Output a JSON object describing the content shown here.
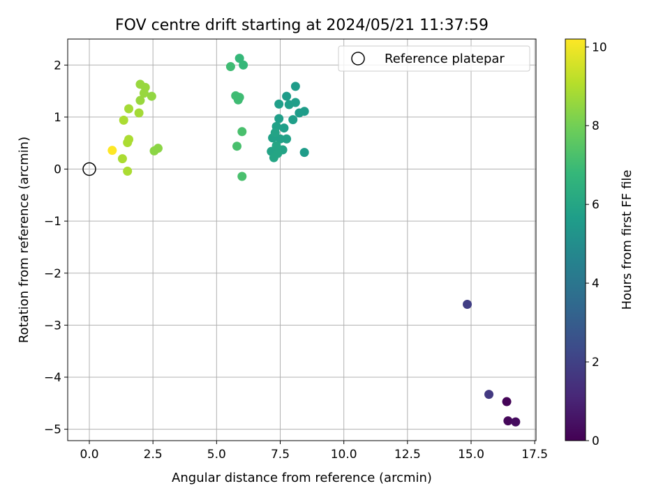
{
  "chart_data": {
    "type": "scatter",
    "title": "FOV centre drift starting at 2024/05/21 11:37:59",
    "xlabel": "Angular distance from reference (arcmin)",
    "ylabel": "Rotation from reference (arcmin)",
    "xlim": [
      -0.85,
      17.55
    ],
    "ylim": [
      -5.22,
      2.5
    ],
    "xticks": [
      0.0,
      2.5,
      5.0,
      7.5,
      10.0,
      12.5,
      15.0,
      17.5
    ],
    "xtick_labels": [
      "0.0",
      "2.5",
      "5.0",
      "7.5",
      "10.0",
      "12.5",
      "15.0",
      "17.5"
    ],
    "yticks": [
      2,
      1,
      0,
      -1,
      -2,
      -3,
      -4,
      -5
    ],
    "ytick_labels": [
      "2",
      "1",
      "0",
      "−1",
      "−2",
      "−3",
      "−4",
      "−5"
    ],
    "grid": true,
    "legend": {
      "placement": "top-right",
      "entries": [
        "Reference platepar"
      ]
    },
    "reference_point": {
      "x": 0.0,
      "y": 0.0,
      "label": "Reference platepar",
      "marker": "open-circle"
    },
    "colorbar": {
      "label": "Hours from first FF file",
      "colormap": "viridis",
      "range": [
        0,
        10.2
      ],
      "ticks": [
        0,
        2,
        4,
        6,
        8,
        10
      ],
      "tick_labels": [
        "0",
        "2",
        "4",
        "6",
        "8",
        "10"
      ],
      "stops": [
        "#440154",
        "#482878",
        "#3e4989",
        "#31688e",
        "#26828e",
        "#1f9e89",
        "#35b779",
        "#6ece58",
        "#b5de2b",
        "#fde725"
      ]
    },
    "points": [
      {
        "x": 16.4,
        "y": -4.47,
        "c": 0.1
      },
      {
        "x": 16.45,
        "y": -4.84,
        "c": 0.2
      },
      {
        "x": 16.75,
        "y": -4.86,
        "c": 0.3
      },
      {
        "x": 15.7,
        "y": -4.33,
        "c": 1.7
      },
      {
        "x": 14.85,
        "y": -2.6,
        "c": 1.9
      },
      {
        "x": 8.1,
        "y": 1.59,
        "c": 5.6
      },
      {
        "x": 7.75,
        "y": 1.4,
        "c": 5.6
      },
      {
        "x": 8.45,
        "y": 1.11,
        "c": 5.6
      },
      {
        "x": 8.25,
        "y": 1.08,
        "c": 5.6
      },
      {
        "x": 8.45,
        "y": 0.32,
        "c": 5.6
      },
      {
        "x": 8.1,
        "y": 1.28,
        "c": 5.7
      },
      {
        "x": 7.85,
        "y": 1.24,
        "c": 5.7
      },
      {
        "x": 7.45,
        "y": 1.25,
        "c": 5.7
      },
      {
        "x": 8.0,
        "y": 0.95,
        "c": 5.7
      },
      {
        "x": 7.45,
        "y": 0.97,
        "c": 5.7
      },
      {
        "x": 7.65,
        "y": 0.79,
        "c": 5.7
      },
      {
        "x": 7.75,
        "y": 0.58,
        "c": 5.8
      },
      {
        "x": 7.5,
        "y": 0.58,
        "c": 5.8
      },
      {
        "x": 7.2,
        "y": 0.6,
        "c": 5.8
      },
      {
        "x": 7.35,
        "y": 0.82,
        "c": 5.8
      },
      {
        "x": 7.3,
        "y": 0.7,
        "c": 5.9
      },
      {
        "x": 7.6,
        "y": 0.37,
        "c": 5.9
      },
      {
        "x": 7.15,
        "y": 0.34,
        "c": 5.9
      },
      {
        "x": 7.4,
        "y": 0.3,
        "c": 6.0
      },
      {
        "x": 7.25,
        "y": 0.22,
        "c": 6.0
      },
      {
        "x": 7.35,
        "y": 0.45,
        "c": 6.0
      },
      {
        "x": 5.9,
        "y": 2.13,
        "c": 6.8
      },
      {
        "x": 6.05,
        "y": 2.0,
        "c": 6.8
      },
      {
        "x": 5.55,
        "y": 1.97,
        "c": 7.0
      },
      {
        "x": 5.75,
        "y": 1.41,
        "c": 7.0
      },
      {
        "x": 5.9,
        "y": 1.38,
        "c": 7.0
      },
      {
        "x": 5.85,
        "y": 1.33,
        "c": 7.0
      },
      {
        "x": 6.0,
        "y": 0.72,
        "c": 7.2
      },
      {
        "x": 5.8,
        "y": 0.44,
        "c": 7.2
      },
      {
        "x": 6.0,
        "y": -0.14,
        "c": 7.2
      },
      {
        "x": 2.0,
        "y": 1.63,
        "c": 8.6
      },
      {
        "x": 2.2,
        "y": 1.57,
        "c": 8.6
      },
      {
        "x": 2.15,
        "y": 1.46,
        "c": 8.6
      },
      {
        "x": 2.45,
        "y": 1.4,
        "c": 8.5
      },
      {
        "x": 2.0,
        "y": 1.32,
        "c": 8.6
      },
      {
        "x": 1.55,
        "y": 1.16,
        "c": 8.8
      },
      {
        "x": 1.95,
        "y": 1.08,
        "c": 8.8
      },
      {
        "x": 1.35,
        "y": 0.94,
        "c": 8.9
      },
      {
        "x": 1.55,
        "y": 0.57,
        "c": 8.9
      },
      {
        "x": 1.5,
        "y": 0.51,
        "c": 8.9
      },
      {
        "x": 2.7,
        "y": 0.4,
        "c": 8.4
      },
      {
        "x": 2.55,
        "y": 0.35,
        "c": 8.4
      },
      {
        "x": 1.3,
        "y": 0.2,
        "c": 8.9
      },
      {
        "x": 1.5,
        "y": -0.04,
        "c": 8.9
      },
      {
        "x": 0.9,
        "y": 0.36,
        "c": 10.2
      }
    ]
  }
}
